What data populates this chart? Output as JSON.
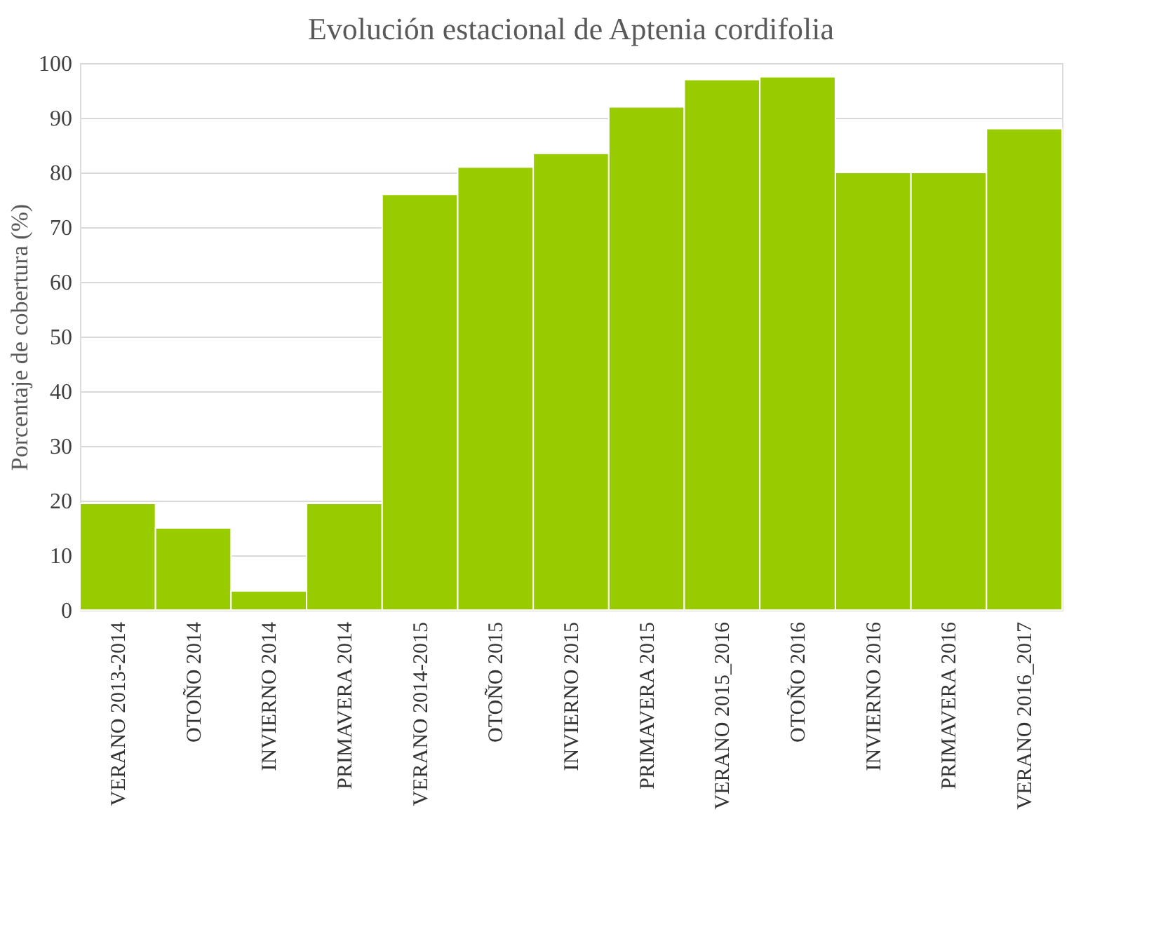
{
  "chart_data": {
    "type": "bar",
    "title": "Evolución estacional de Aptenia cordifolia",
    "ylabel": "Porcentaje de cobertura (%)",
    "categories": [
      "VERANO 2013-2014",
      "OTOÑO 2014",
      "INVIERNO 2014",
      "PRIMAVERA 2014",
      "VERANO 2014-2015",
      "OTOÑO 2015",
      "INVIERNO 2015",
      "PRIMAVERA 2015",
      "VERANO 2015_2016",
      "OTOÑO 2016",
      "INVIERNO 2016",
      "PRIMAVERA 2016",
      "VERANO 2016_2017"
    ],
    "values": [
      19.5,
      15,
      3.5,
      19.5,
      76,
      81,
      83.5,
      92,
      97,
      97.5,
      80,
      80,
      88
    ],
    "color": "#99cc00",
    "ylim": [
      0,
      100
    ],
    "yticks": [
      0,
      10,
      20,
      30,
      40,
      50,
      60,
      70,
      80,
      90,
      100
    ],
    "grid": "y"
  }
}
